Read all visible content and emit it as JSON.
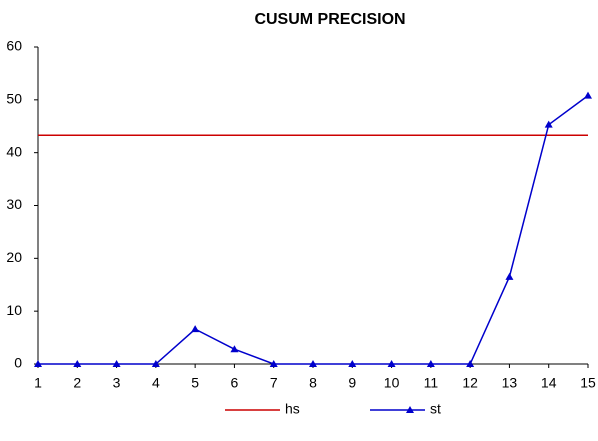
{
  "chart_data": {
    "type": "line",
    "title": "CUSUM PRECISION",
    "x": [
      1,
      2,
      3,
      4,
      5,
      6,
      7,
      8,
      9,
      10,
      11,
      12,
      13,
      14,
      15
    ],
    "xlim": [
      1,
      15
    ],
    "xticks": [
      1,
      2,
      3,
      4,
      5,
      6,
      7,
      8,
      9,
      10,
      11,
      12,
      13,
      14,
      15
    ],
    "ylim": [
      0,
      60
    ],
    "yticks": [
      0,
      10,
      20,
      30,
      40,
      50,
      60
    ],
    "legend": "bottom",
    "series": [
      {
        "name": "hs",
        "color": "#cc0000",
        "marker": "none",
        "values": [
          43.3,
          43.3,
          43.3,
          43.3,
          43.3,
          43.3,
          43.3,
          43.3,
          43.3,
          43.3,
          43.3,
          43.3,
          43.3,
          43.3,
          43.3
        ]
      },
      {
        "name": "st",
        "color": "#0000cc",
        "marker": "triangle",
        "values": [
          0,
          0,
          0,
          0,
          6.6,
          2.8,
          0,
          0,
          0,
          0,
          0,
          0,
          16.5,
          45.3,
          50.8
        ]
      }
    ]
  }
}
